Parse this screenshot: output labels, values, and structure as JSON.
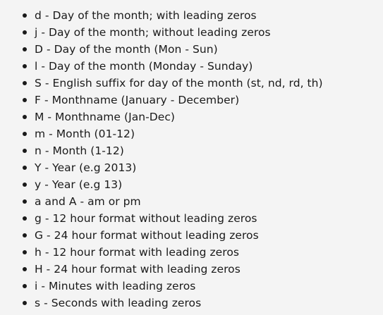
{
  "format_items": [
    {
      "text": "d - Day of the month; with leading zeros"
    },
    {
      "text": "j - Day of the month; without leading zeros"
    },
    {
      "text": "D - Day of the month (Mon - Sun)"
    },
    {
      "text": "l - Day of the month (Monday - Sunday)"
    },
    {
      "text": "S - English suffix for day of the month (st, nd, rd, th)"
    },
    {
      "text": "F - Monthname (January - December)"
    },
    {
      "text": "M - Monthname (Jan-Dec)"
    },
    {
      "text": "m - Month (01-12)"
    },
    {
      "text": "n - Month (1-12)"
    },
    {
      "text": "Y - Year (e.g 2013)"
    },
    {
      "text": "y - Year (e.g 13)"
    },
    {
      "text": "a and A - am or pm"
    },
    {
      "text": "g - 12 hour format without leading zeros"
    },
    {
      "text": "G - 24 hour format without leading zeros"
    },
    {
      "text": "h - 12 hour format with leading zeros"
    },
    {
      "text": "H - 24 hour format with leading zeros"
    },
    {
      "text": "i - Minutes with leading zeros"
    },
    {
      "text": "s - Seconds with leading zeros"
    }
  ]
}
